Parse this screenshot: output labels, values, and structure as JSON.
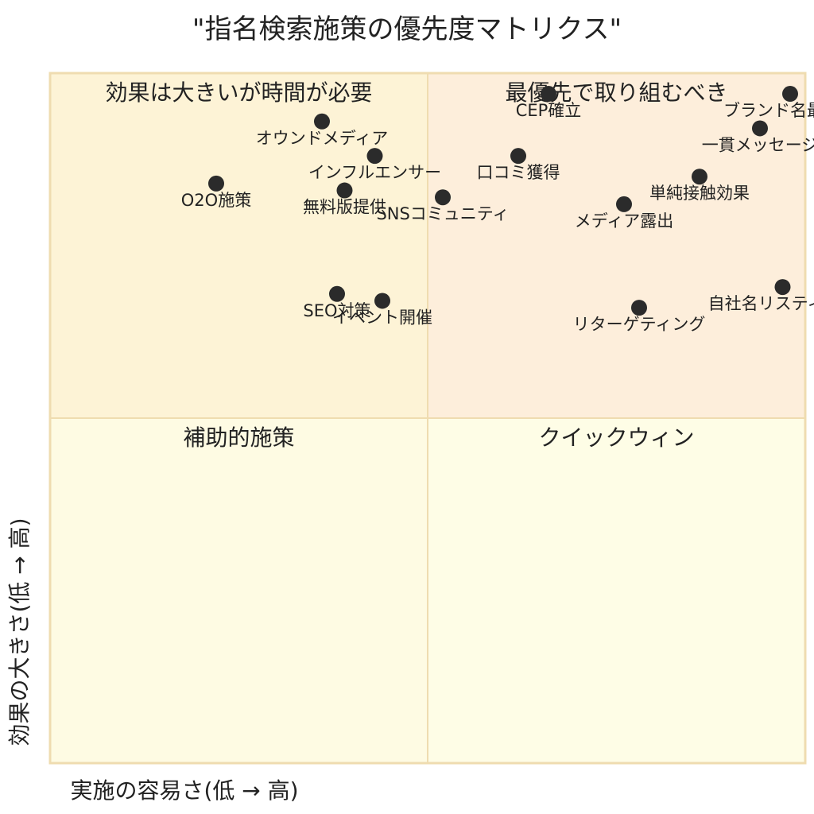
{
  "chart_data": {
    "type": "scatter",
    "title": "\"指名検索施策の優先度マトリクス\"",
    "xlabel": "実施の容易さ(低 → 高)",
    "ylabel": "効果の大きさ(低 → 高)",
    "xlim": [
      0,
      1
    ],
    "ylim": [
      0,
      1
    ],
    "divider": {
      "x": 0.5,
      "y": 0.5
    },
    "grid": false,
    "quadrants": [
      {
        "id": "top-left",
        "label": "効果は大きいが時間が必要",
        "color": "#fdf3d6"
      },
      {
        "id": "top-right",
        "label": "最優先で取り組むべき",
        "color": "#fdeedb"
      },
      {
        "id": "bottom-left",
        "label": "補助的施策",
        "color": "#fefbe3"
      },
      {
        "id": "bottom-right",
        "label": "クイックウィン",
        "color": "#fefde6"
      }
    ],
    "colors": {
      "border": "#efdcb0",
      "point": "#2b2b2b",
      "text": "#222222"
    },
    "points": [
      {
        "label": "ブランド名最適化",
        "x": 0.98,
        "y": 0.97
      },
      {
        "label": "一貫メッセージ",
        "x": 0.94,
        "y": 0.92
      },
      {
        "label": "CEP確立",
        "x": 0.66,
        "y": 0.97
      },
      {
        "label": "オウンドメディア",
        "x": 0.36,
        "y": 0.93
      },
      {
        "label": "インフルエンサー",
        "x": 0.43,
        "y": 0.88
      },
      {
        "label": "口コミ獲得",
        "x": 0.62,
        "y": 0.88
      },
      {
        "label": "単純接触効果",
        "x": 0.86,
        "y": 0.85
      },
      {
        "label": "O2O施策",
        "x": 0.22,
        "y": 0.84
      },
      {
        "label": "無料版提供",
        "x": 0.39,
        "y": 0.83
      },
      {
        "label": "SNSコミュニティ",
        "x": 0.52,
        "y": 0.82
      },
      {
        "label": "メディア露出",
        "x": 0.76,
        "y": 0.81
      },
      {
        "label": "自社名リスティング",
        "x": 0.97,
        "y": 0.69
      },
      {
        "label": "SEO対策",
        "x": 0.38,
        "y": 0.68
      },
      {
        "label": "イベント開催",
        "x": 0.44,
        "y": 0.67
      },
      {
        "label": "リターゲティング",
        "x": 0.78,
        "y": 0.66
      }
    ]
  }
}
